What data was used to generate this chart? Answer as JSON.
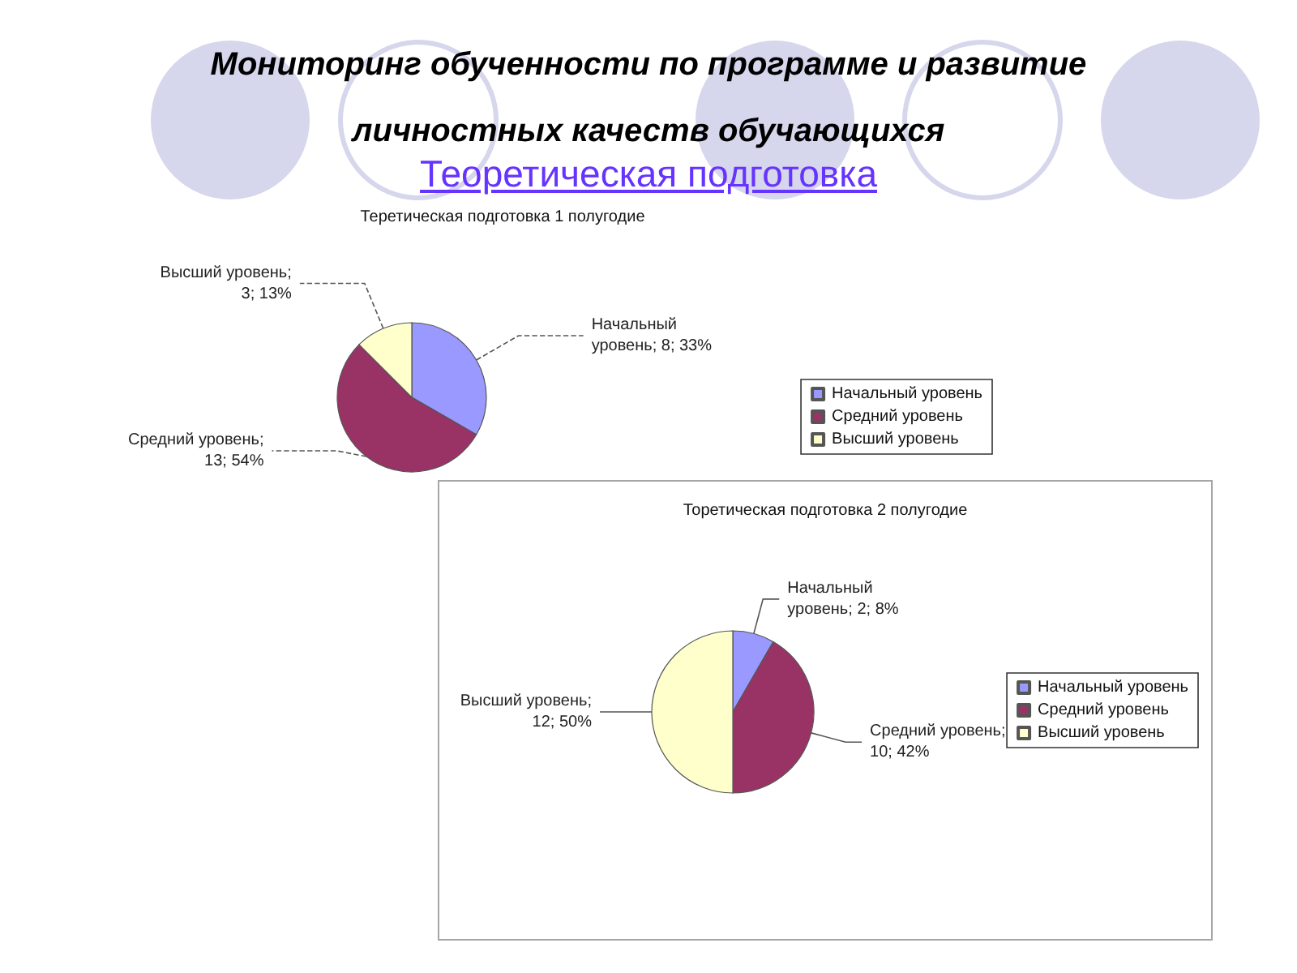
{
  "chart_data": [
    {
      "type": "pie",
      "title": "Теретическая подготовка 1 полугодие",
      "categories": [
        "Начальный уровень",
        "Средний уровень",
        "Высший уровень"
      ],
      "values": [
        8,
        13,
        3
      ],
      "colors": [
        "#9999ff",
        "#993366",
        "#ffffcc"
      ],
      "value_labels": [
        "Начальный уровень; 8; 33%",
        "Средний уровень; 13; 54%",
        "Высший уровень; 3; 13%"
      ],
      "legend": "bottom right",
      "annotations": [
        "Мониторинг обученности по программе и развитие личностных качеств обучающихся",
        "Теоретическая подготовка"
      ]
    },
    {
      "type": "pie",
      "title": "Торетическая подготовка 2 полугодие",
      "categories": [
        "Начальный уровень",
        "Средний уровень",
        "Высший уровень"
      ],
      "values": [
        2,
        10,
        12
      ],
      "colors": [
        "#9999ff",
        "#993366",
        "#ffffcc"
      ],
      "value_labels": [
        "Начальный уровень; 2; 8%",
        "Средний уровень; 10; 42%",
        "Высший уровень; 12; 50%"
      ],
      "legend": "right"
    }
  ]
}
